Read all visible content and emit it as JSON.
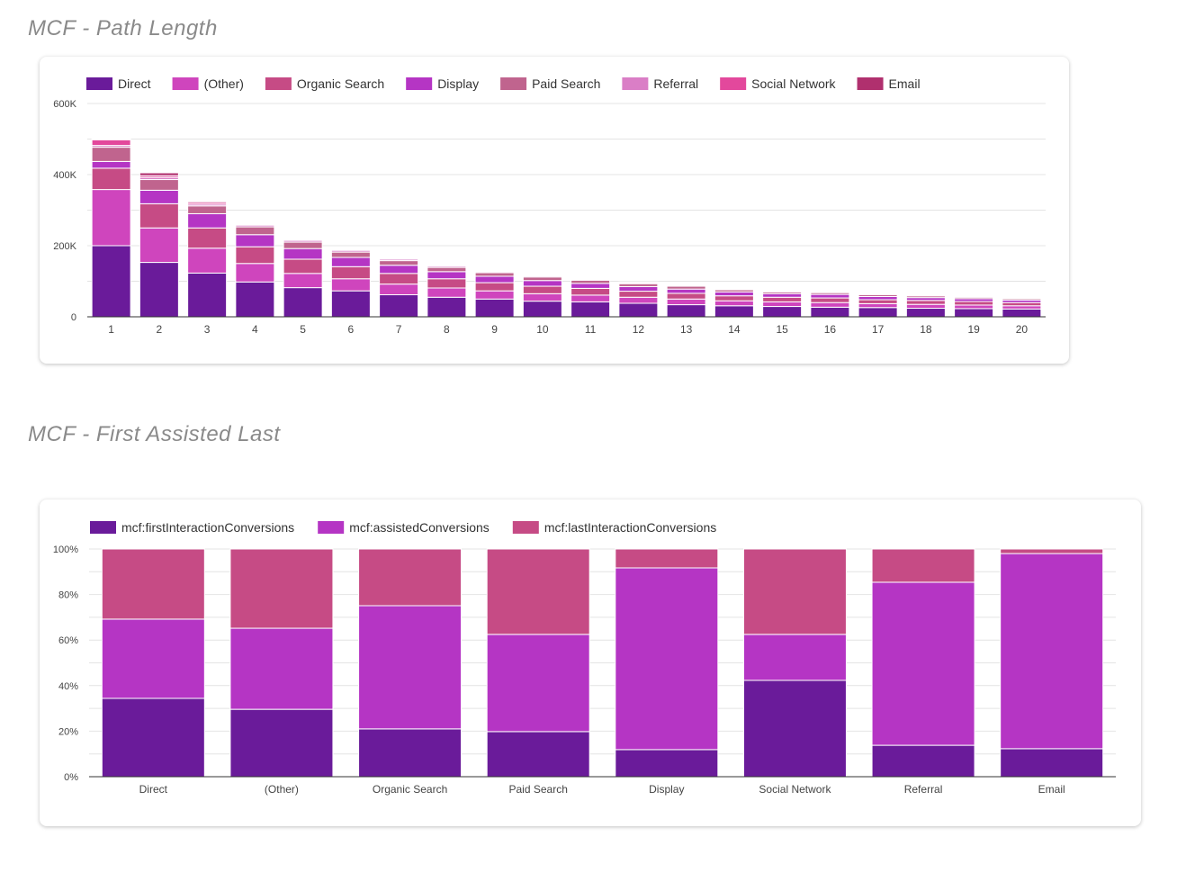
{
  "titles": {
    "path_length": "MCF - Path Length",
    "first_assisted_last": "MCF - First Assisted Last"
  },
  "chart_data": [
    {
      "type": "bar",
      "stacked": true,
      "title": "MCF - Path Length",
      "categories": [
        "1",
        "2",
        "3",
        "4",
        "5",
        "6",
        "7",
        "8",
        "9",
        "10",
        "11",
        "12",
        "13",
        "14",
        "15",
        "16",
        "17",
        "18",
        "19",
        "20"
      ],
      "yticks": [
        "0",
        "200K",
        "400K",
        "600K"
      ],
      "ylim": [
        0,
        600000
      ],
      "grid": true,
      "legend_position": "top-left",
      "series": [
        {
          "name": "Direct",
          "color": "#6a1b9a",
          "values": [
            200000,
            153000,
            123000,
            98000,
            82000,
            73000,
            62000,
            55000,
            50000,
            44000,
            42000,
            38000,
            34000,
            31000,
            29000,
            27000,
            26000,
            24000,
            23000,
            22000
          ]
        },
        {
          "name": "(Other)",
          "color": "#cf45bd",
          "values": [
            158000,
            97000,
            70000,
            52000,
            40000,
            34000,
            30000,
            26000,
            23000,
            21000,
            19000,
            17000,
            16000,
            14000,
            13000,
            13000,
            11000,
            11000,
            10000,
            9000
          ]
        },
        {
          "name": "Organic Search",
          "color": "#c64b85",
          "values": [
            60000,
            68000,
            57000,
            47000,
            40000,
            34000,
            30000,
            26000,
            23000,
            21000,
            19000,
            17000,
            16000,
            14000,
            13000,
            13000,
            11000,
            11000,
            10000,
            9000
          ]
        },
        {
          "name": "Display",
          "color": "#b535c4",
          "values": [
            19000,
            38000,
            40000,
            34000,
            30000,
            26000,
            23000,
            20000,
            18000,
            16000,
            14000,
            13000,
            12000,
            11000,
            10000,
            10000,
            9000,
            8000,
            8000,
            7000
          ]
        },
        {
          "name": "Paid Search",
          "color": "#c0648e",
          "values": [
            40000,
            30000,
            22000,
            22000,
            18000,
            15000,
            13000,
            12000,
            10000,
            10000,
            9000,
            8000,
            8000,
            6000,
            5000,
            5000,
            5000,
            5000,
            4000,
            4000
          ]
        },
        {
          "name": "Referral",
          "color": "#da7ec6",
          "values": [
            5000,
            6000,
            5000,
            5000,
            5000,
            5000,
            4000,
            4000,
            3000,
            3000,
            2000,
            3000,
            2000,
            2000,
            2000,
            2000,
            2000,
            1000,
            2000,
            1000
          ]
        },
        {
          "name": "Social Network",
          "color": "#e3489c",
          "values": [
            16000,
            5000,
            5000,
            1000,
            2000,
            2000,
            2000,
            1000,
            2000,
            1000,
            1000,
            1000,
            1000,
            1000,
            1000,
            1000,
            1000,
            1000,
            1000,
            1000
          ]
        },
        {
          "name": "Email",
          "color": "#b0306e",
          "values": [
            2000,
            8000,
            3000,
            1000,
            1000,
            1000,
            1000,
            1000,
            1000,
            1000,
            1000,
            1000,
            1000,
            1000,
            0,
            0,
            0,
            0,
            0,
            0
          ]
        }
      ]
    },
    {
      "type": "bar",
      "stacked": true,
      "normalized": true,
      "title": "MCF - First Assisted Last",
      "categories": [
        "Direct",
        "(Other)",
        "Organic Search",
        "Paid Search",
        "Display",
        "Social Network",
        "Referral",
        "Email"
      ],
      "yticks": [
        "0%",
        "20%",
        "40%",
        "60%",
        "80%",
        "100%"
      ],
      "ylim": [
        0,
        100
      ],
      "grid": true,
      "legend_position": "top-left",
      "series": [
        {
          "name": "mcf:firstInteractionConversions",
          "color": "#6a1b9a",
          "values": [
            34.4,
            29.6,
            21.0,
            19.8,
            11.9,
            42.3,
            13.8,
            12.3
          ]
        },
        {
          "name": "mcf:assistedConversions",
          "color": "#b535c4",
          "values": [
            34.8,
            35.6,
            54.1,
            42.7,
            79.8,
            20.2,
            71.6,
            85.7
          ]
        },
        {
          "name": "mcf:lastInteractionConversions",
          "color": "#c64b85",
          "values": [
            30.8,
            34.8,
            24.9,
            37.5,
            8.3,
            37.5,
            14.6,
            2.0
          ]
        }
      ]
    }
  ]
}
